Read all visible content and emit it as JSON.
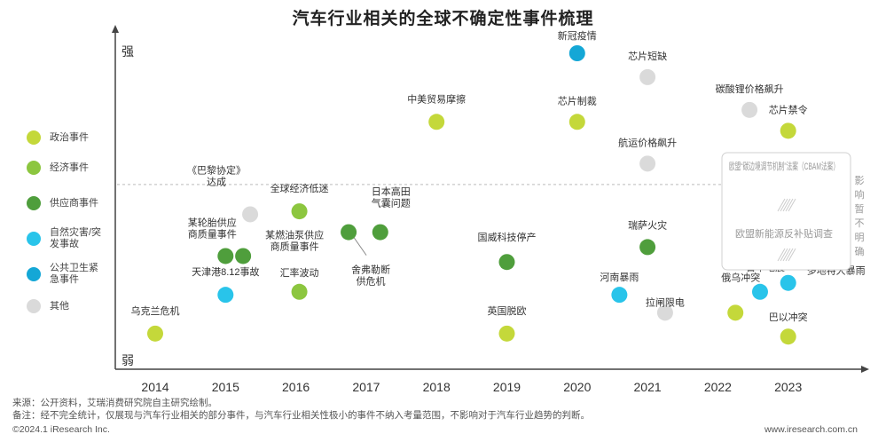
{
  "title": "汽车行业相关的全球不确定性事件梳理",
  "legend": [
    {
      "label": "政治事件",
      "color": "#c4d83a"
    },
    {
      "label": "经济事件",
      "color": "#8cc63f"
    },
    {
      "label": "供应商事件",
      "color": "#4f9e3c"
    },
    {
      "label": "自然灾害/突发事故",
      "color": "#29c4ea"
    },
    {
      "label": "公共卫生紧急事件",
      "color": "#14a7d6"
    },
    {
      "label": "其他",
      "color": "#dadada"
    }
  ],
  "axis": {
    "strong_label": "强",
    "weak_label": "弱"
  },
  "chart_data": {
    "type": "scatter",
    "title": "汽车行业相关的全球不确定性事件梳理",
    "x_categories": [
      "2014",
      "2015",
      "2016",
      "2017",
      "2018",
      "2019",
      "2020",
      "2021",
      "2022",
      "2023"
    ],
    "y_scale": "impact (0 = 弱, 1 = 强)",
    "threshold": 0.56,
    "points": [
      {
        "label": "乌克兰危机",
        "category": "政治事件",
        "x": 2014.0,
        "y": 0.06
      },
      {
        "label": "天津港8.12事故",
        "category": "自然灾害/突发事故",
        "x": 2015.0,
        "y": 0.19
      },
      {
        "label": "某轮胎供应商质量事件",
        "category": "供应商事件",
        "x": 2015.0,
        "y": 0.32
      },
      {
        "label": "某燃油泵供应商质量事件",
        "category": "供应商事件",
        "x": 2015.25,
        "y": 0.32
      },
      {
        "label": "《巴黎协定》达成",
        "category": "其他",
        "x": 2015.35,
        "y": 0.46
      },
      {
        "label": "全球经济低迷",
        "category": "经济事件",
        "x": 2016.05,
        "y": 0.47
      },
      {
        "label": "汇率波动",
        "category": "经济事件",
        "x": 2016.05,
        "y": 0.2
      },
      {
        "label": "舍弗勒断供危机",
        "category": "供应商事件",
        "x": 2016.75,
        "y": 0.4
      },
      {
        "label": "日本高田气囊问题",
        "category": "供应商事件",
        "x": 2017.2,
        "y": 0.4
      },
      {
        "label": "中美贸易摩擦",
        "category": "政治事件",
        "x": 2018.0,
        "y": 0.77
      },
      {
        "label": "国威科技停产",
        "category": "供应商事件",
        "x": 2019.0,
        "y": 0.3
      },
      {
        "label": "英国脱欧",
        "category": "政治事件",
        "x": 2019.0,
        "y": 0.06
      },
      {
        "label": "新冠疫情",
        "category": "公共卫生紧急事件",
        "x": 2020.0,
        "y": 1.0
      },
      {
        "label": "芯片制裁",
        "category": "政治事件",
        "x": 2020.0,
        "y": 0.77
      },
      {
        "label": "芯片短缺",
        "category": "其他",
        "x": 2021.0,
        "y": 0.92
      },
      {
        "label": "航运价格飙升",
        "category": "其他",
        "x": 2021.0,
        "y": 0.63
      },
      {
        "label": "瑞萨火灾",
        "category": "供应商事件",
        "x": 2021.0,
        "y": 0.35
      },
      {
        "label": "河南暴雨",
        "category": "自然灾害/突发事故",
        "x": 2020.6,
        "y": 0.19
      },
      {
        "label": "拉闸限电",
        "category": "其他",
        "x": 2021.25,
        "y": 0.13
      },
      {
        "label": "碳酸锂价格飙升",
        "category": "其他",
        "x": 2022.45,
        "y": 0.81
      },
      {
        "label": "芯片禁令",
        "category": "政治事件",
        "x": 2023.0,
        "y": 0.74
      },
      {
        "label": "俄乌冲突",
        "category": "政治事件",
        "x": 2022.25,
        "y": 0.13
      },
      {
        "label": "日本地震",
        "category": "自然灾害/突发事故",
        "x": 2022.6,
        "y": 0.2
      },
      {
        "label": "多地特大暴雨",
        "category": "自然灾害/突发事故",
        "x": 2023.0,
        "y": 0.23
      },
      {
        "label": "巴以冲突",
        "category": "政治事件",
        "x": 2023.0,
        "y": 0.05
      }
    ],
    "pending_box": {
      "items": [
        "欧盟“碳边境调节机制”法案（CBAM法案）",
        "欧盟新能源反补贴调查"
      ],
      "side_label": "影响暂不明确"
    }
  },
  "footer": {
    "source": "来源：公开资料，艾瑞消费研究院自主研究绘制。",
    "note": "备注：经不完全统计，仅展现与汽车行业相关的部分事件，与汽车行业相关性极小的事件不纳入考量范围，不影响对于汽车行业趋势的判断。",
    "copyright": "©2024.1 iResearch Inc.",
    "website": "www.iresearch.com.cn"
  }
}
